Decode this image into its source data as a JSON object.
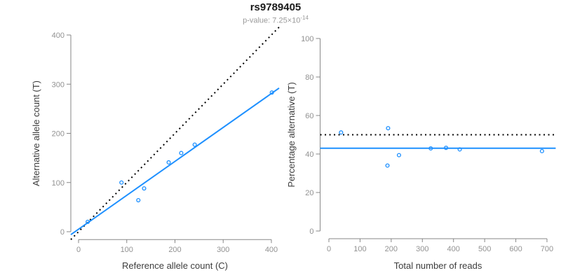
{
  "header": {
    "title": "rs9789405",
    "subtitle_prefix": "p-value: ",
    "p_value_base": "7.25×10",
    "p_value_exponent": "-14"
  },
  "colors": {
    "accent_blue": "#1E90FF",
    "reference_line_black": "#000000",
    "axis_line_gray": "#878787",
    "tick_label_gray": "#929292",
    "axis_title_gray": "#3d3d3d",
    "subtitle_gray": "#9a9a9a",
    "title_black": "#1a1a1a"
  },
  "chart_data": [
    {
      "type": "scatter",
      "panel": "left",
      "xlabel": "Reference allele count (C)",
      "ylabel": "Alternative allele count (T)",
      "xlim": [
        0,
        400
      ],
      "ylim": [
        0,
        400
      ],
      "xticks": [
        0,
        100,
        200,
        300,
        400
      ],
      "yticks": [
        0,
        100,
        200,
        300,
        400
      ],
      "grid": false,
      "legend": null,
      "points": [
        [
          19,
          20
        ],
        [
          89,
          100
        ],
        [
          124,
          64
        ],
        [
          136,
          88
        ],
        [
          187,
          141
        ],
        [
          213,
          160
        ],
        [
          241,
          177
        ],
        [
          401,
          283
        ]
      ],
      "lines": [
        {
          "name": "identity-line",
          "style": "dotted",
          "color_key": "reference_line_black",
          "slope": 1,
          "intercept": 0
        },
        {
          "name": "fit-line",
          "style": "solid",
          "color_key": "accent_blue",
          "slope": 0.69,
          "intercept": 5
        }
      ]
    },
    {
      "type": "scatter",
      "panel": "right",
      "xlabel": "Total number of reads",
      "ylabel": "Percentage alternative (T)",
      "xlim": [
        0,
        700
      ],
      "ylim": [
        0,
        100
      ],
      "xticks": [
        0,
        100,
        200,
        300,
        400,
        500,
        600,
        700
      ],
      "yticks": [
        0,
        20,
        40,
        60,
        80,
        100
      ],
      "grid": false,
      "legend": null,
      "points": [
        [
          39,
          51.2
        ],
        [
          188,
          34.0
        ],
        [
          190,
          53.4
        ],
        [
          225,
          39.4
        ],
        [
          327,
          42.9
        ],
        [
          376,
          43.2
        ],
        [
          420,
          42.4
        ],
        [
          684,
          41.5
        ]
      ],
      "lines": [
        {
          "name": "expected-50-percent-line",
          "style": "dotted",
          "color_key": "reference_line_black",
          "slope": 0,
          "intercept": 50
        },
        {
          "name": "mean-percentage-line",
          "style": "solid",
          "color_key": "accent_blue",
          "slope": 0,
          "intercept": 43
        }
      ]
    }
  ]
}
